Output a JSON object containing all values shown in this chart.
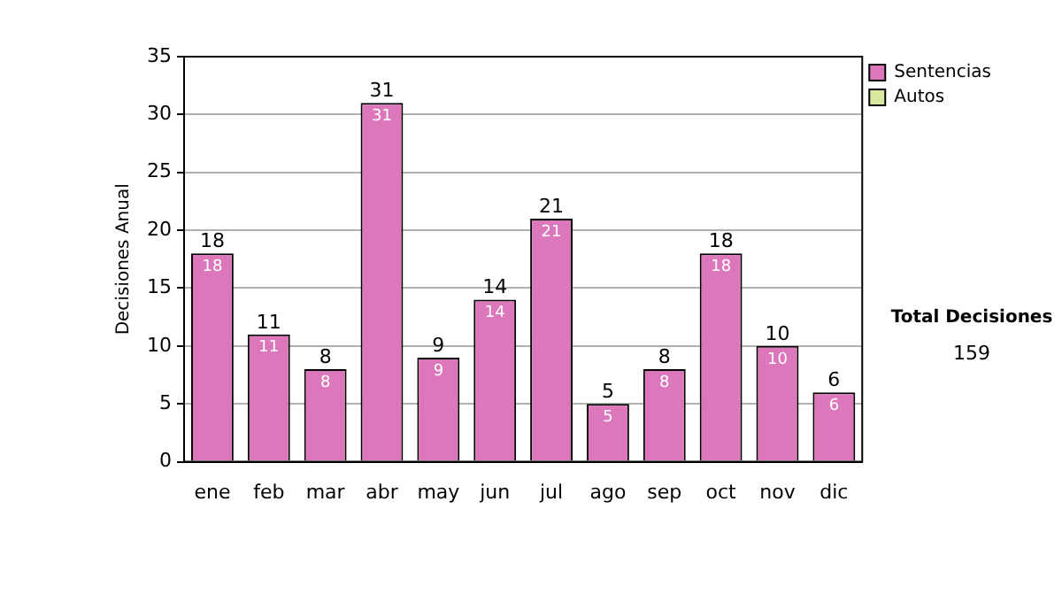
{
  "chart_data": {
    "type": "bar",
    "ylabel": "Decisiones Anual",
    "categories": [
      "ene",
      "feb",
      "mar",
      "abr",
      "may",
      "jun",
      "jul",
      "ago",
      "sep",
      "oct",
      "nov",
      "dic"
    ],
    "series": [
      {
        "name": "Sentencias",
        "color": "#dd77bb",
        "values": [
          18,
          11,
          8,
          31,
          9,
          14,
          21,
          5,
          8,
          18,
          10,
          6
        ]
      },
      {
        "name": "Autos",
        "color": "#d8eaa0",
        "values": [
          null,
          null,
          null,
          null,
          null,
          null,
          null,
          null,
          null,
          null,
          null,
          null
        ]
      }
    ],
    "stacked": true,
    "ylim": [
      0,
      35
    ],
    "yticks": [
      0,
      5,
      10,
      15,
      20,
      25,
      30,
      35
    ],
    "grid": "y",
    "legend": "right",
    "data_labels": true,
    "totals": [
      "18",
      "11",
      "8",
      "31",
      "9",
      "14",
      "21",
      "5",
      "8",
      "18",
      "10",
      "6"
    ],
    "annotations": [
      "Total Decisiones",
      "159"
    ]
  }
}
